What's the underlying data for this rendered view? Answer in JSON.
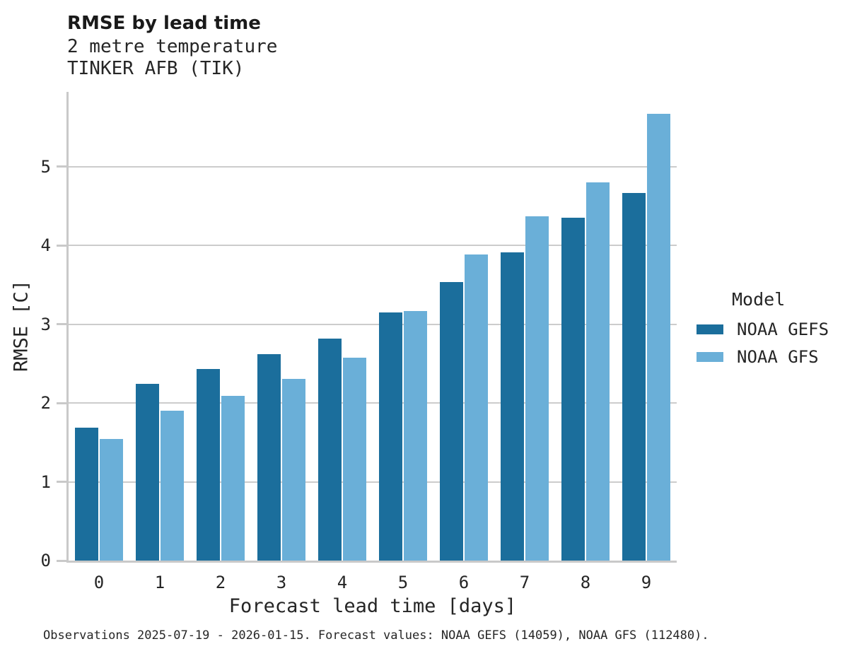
{
  "header": {
    "title": "RMSE by lead time",
    "subtitle": "2 metre temperature",
    "station": "TINKER AFB (TIK)"
  },
  "chart_data": {
    "type": "bar",
    "title": "RMSE by lead time",
    "subtitle": "2 metre temperature",
    "station": "TINKER AFB (TIK)",
    "xlabel": "Forecast lead time [days]",
    "ylabel": "RMSE [C]",
    "categories": [
      "0",
      "1",
      "2",
      "3",
      "4",
      "5",
      "6",
      "7",
      "8",
      "9"
    ],
    "yticks": [
      0,
      1,
      2,
      3,
      4,
      5
    ],
    "ylim": [
      0,
      5.95
    ],
    "grid": "horizontal",
    "legend_title": "Model",
    "legend_position": "right",
    "series": [
      {
        "name": "NOAA GEFS",
        "color": "#1B6E9C",
        "values": [
          1.69,
          2.24,
          2.43,
          2.62,
          2.82,
          3.15,
          3.54,
          3.91,
          4.35,
          4.67
        ]
      },
      {
        "name": "NOAA GFS",
        "color": "#6AAFD8",
        "values": [
          1.54,
          1.9,
          2.09,
          2.31,
          2.58,
          3.17,
          3.89,
          4.37,
          4.8,
          5.67
        ]
      }
    ]
  },
  "colors": {
    "grid": "#cccccc",
    "axis": "#c9c9c9",
    "text": "#252525"
  },
  "footer": {
    "note": "Observations 2025-07-19 - 2026-01-15. Forecast values: NOAA GEFS (14059), NOAA GFS (112480)."
  }
}
